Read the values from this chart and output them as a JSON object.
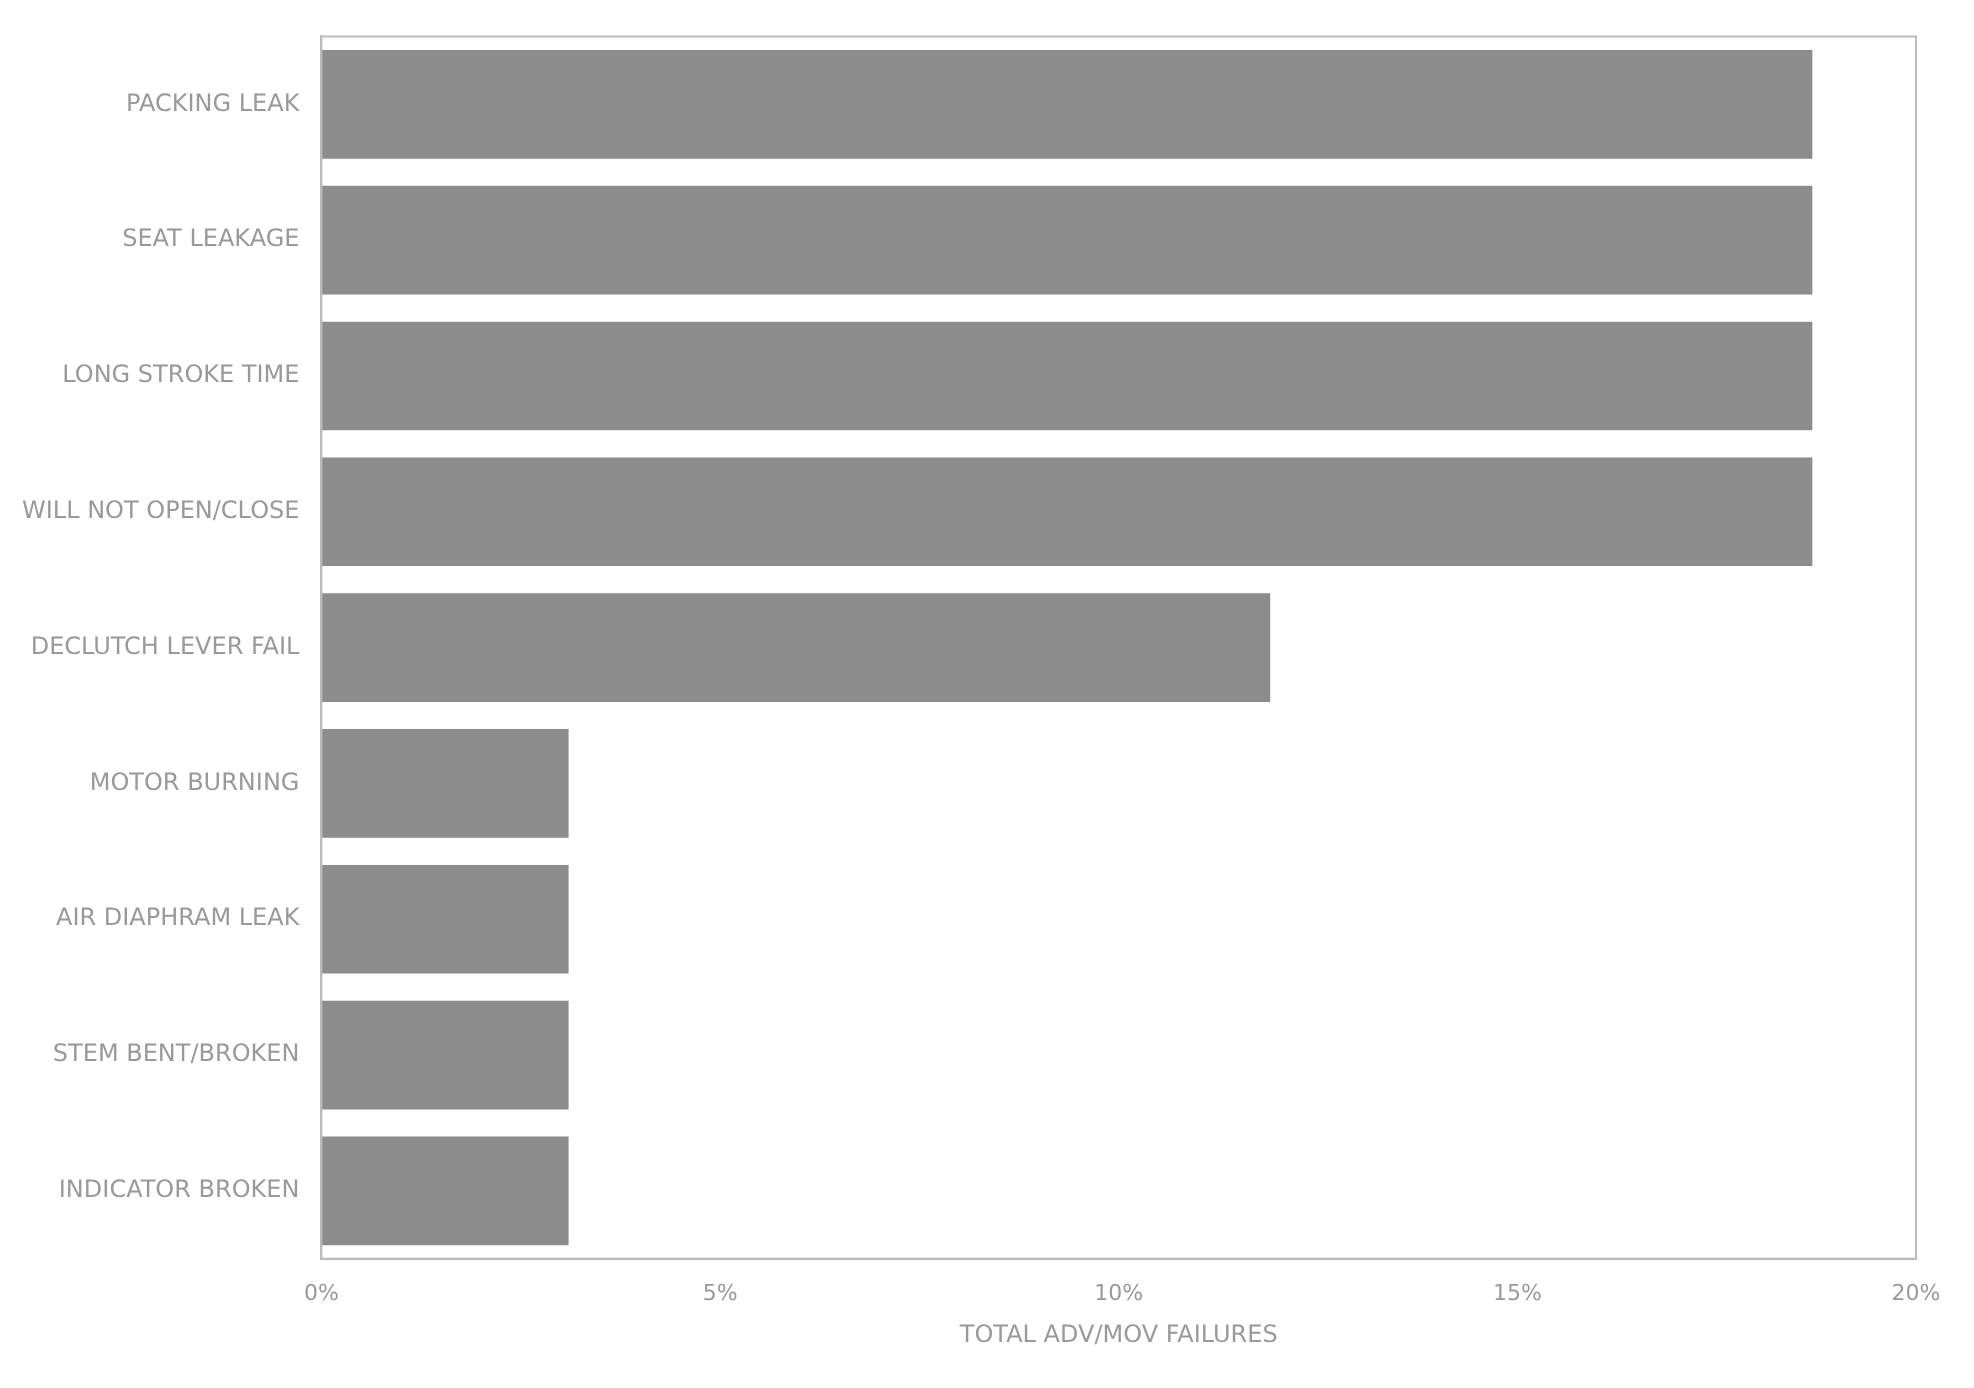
{
  "chart_data": {
    "type": "bar",
    "orientation": "horizontal",
    "xlabel": "TOTAL ADV/MOV FAILURES",
    "categories": [
      "PACKING LEAK",
      "SEAT LEAKAGE",
      "LONG STROKE TIME",
      "WILL NOT OPEN/CLOSE",
      "DECLUTCH LEVER FAIL",
      "MOTOR BURNING",
      "AIR DIAPHRAM LEAK",
      "STEM BENT/BROKEN",
      "INDICATOR BROKEN"
    ],
    "values": [
      18.7,
      18.7,
      18.7,
      18.7,
      11.9,
      3.1,
      3.1,
      3.1,
      3.1
    ],
    "color": "#8c8c8c",
    "xlim": [
      0,
      20
    ],
    "xticks": [
      {
        "value": 0,
        "label": "0%"
      },
      {
        "value": 5,
        "label": "5%"
      },
      {
        "value": 10,
        "label": "10%"
      },
      {
        "value": 15,
        "label": "15%"
      },
      {
        "value": 20,
        "label": "20%"
      }
    ],
    "grid": false,
    "legend": false
  }
}
